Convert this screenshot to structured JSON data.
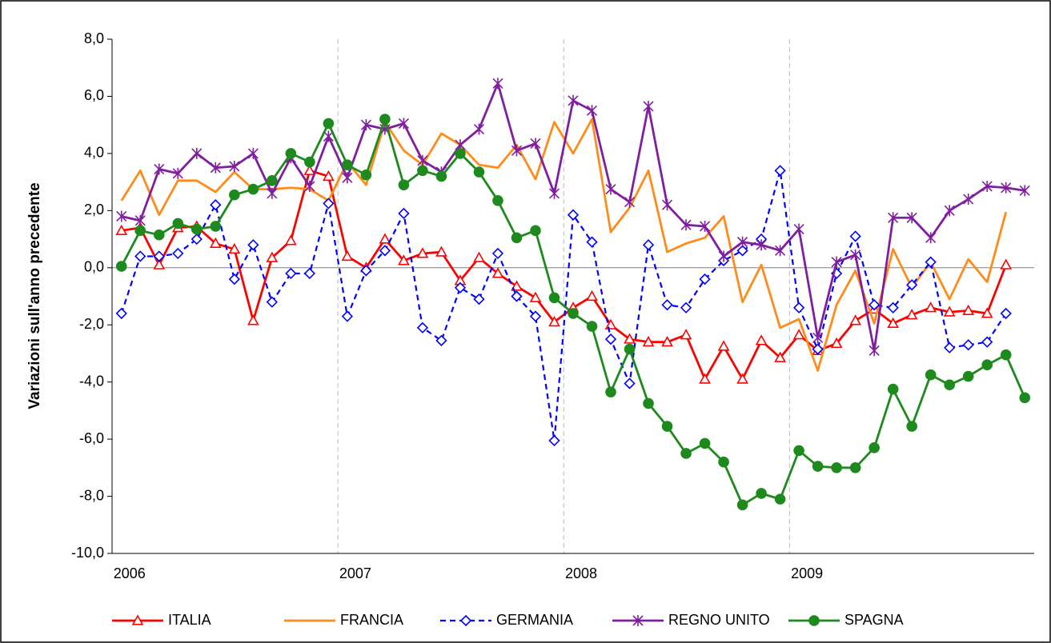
{
  "chart_data": {
    "type": "line",
    "y_label": "Variazioni sull'anno precedente",
    "categories": [
      "2006",
      null,
      null,
      null,
      null,
      null,
      null,
      null,
      null,
      null,
      null,
      null,
      "2007",
      null,
      null,
      null,
      null,
      null,
      null,
      null,
      null,
      null,
      null,
      null,
      "2008",
      null,
      null,
      null,
      null,
      null,
      null,
      null,
      null,
      null,
      null,
      null,
      "2009",
      null,
      null,
      null,
      null,
      null,
      null,
      null,
      null,
      null,
      null,
      null,
      null
    ],
    "ylim": [
      -10,
      8
    ],
    "yticks": [
      {
        "value": -10,
        "label": "-10,0"
      },
      {
        "value": -8,
        "label": "-8,0"
      },
      {
        "value": -6,
        "label": "-6,0"
      },
      {
        "value": -4,
        "label": "-4,0"
      },
      {
        "value": -2,
        "label": "-2,0"
      },
      {
        "value": 0,
        "label": "0,0"
      },
      {
        "value": 2,
        "label": "2,0"
      },
      {
        "value": 4,
        "label": "4,0"
      },
      {
        "value": 6,
        "label": "6,0"
      },
      {
        "value": 8,
        "label": "8,0"
      }
    ],
    "xgrid": true,
    "legend": "bottom",
    "series": [
      {
        "name": "ITALIA",
        "color": "#ff0000",
        "marker": "triangle",
        "dashed": false,
        "values": [
          1.3,
          1.4,
          0.1,
          1.4,
          1.45,
          0.85,
          0.65,
          -1.85,
          0.35,
          0.95,
          3.4,
          3.2,
          0.4,
          0.0,
          1.0,
          0.25,
          0.5,
          0.55,
          -0.45,
          0.35,
          -0.2,
          -0.65,
          -1.05,
          -1.9,
          -1.4,
          -1.0,
          -2.0,
          -2.5,
          -2.6,
          -2.6,
          -2.35,
          -3.9,
          -2.75,
          -3.9,
          -2.55,
          -3.15,
          -2.35,
          -2.9,
          -2.65,
          -1.85,
          -1.45,
          -1.95,
          -1.65,
          -1.4,
          -1.55,
          -1.5,
          -1.6,
          0.1,
          null
        ]
      },
      {
        "name": "FRANCIA",
        "color": "#ff8c1a",
        "marker": "none",
        "dashed": false,
        "values": [
          2.35,
          3.4,
          1.85,
          3.05,
          3.05,
          2.65,
          3.35,
          2.75,
          2.75,
          2.8,
          2.75,
          2.35,
          3.7,
          2.9,
          5.1,
          4.1,
          3.6,
          4.7,
          4.3,
          3.6,
          3.5,
          4.3,
          3.1,
          5.1,
          4.0,
          5.2,
          1.25,
          2.1,
          3.4,
          0.55,
          0.85,
          1.05,
          1.8,
          -1.2,
          0.1,
          -2.1,
          -1.8,
          -3.6,
          -1.3,
          -0.1,
          -1.95,
          0.65,
          -0.7,
          0.2,
          -1.1,
          0.3,
          -0.5,
          1.95,
          null
        ]
      },
      {
        "name": "GERMANIA",
        "color": "#0000ff",
        "marker": "diamond",
        "dashed": true,
        "values": [
          -1.6,
          0.4,
          0.4,
          0.5,
          1.0,
          2.2,
          -0.4,
          0.8,
          -1.2,
          -0.2,
          -0.2,
          2.25,
          -1.7,
          -0.1,
          0.6,
          1.9,
          -2.1,
          -2.55,
          -0.7,
          -1.1,
          0.5,
          -1.0,
          -1.7,
          -6.05,
          1.85,
          0.9,
          -2.5,
          -4.05,
          0.8,
          -1.3,
          -1.4,
          -0.4,
          0.25,
          0.6,
          1.0,
          3.4,
          -1.4,
          -2.85,
          -0.2,
          1.1,
          -1.3,
          -1.4,
          -0.6,
          0.2,
          -2.8,
          -2.7,
          -2.6,
          -1.6,
          null
        ]
      },
      {
        "name": "REGNO UNITO",
        "color": "#7f1f9f",
        "marker": "star",
        "dashed": false,
        "values": [
          1.8,
          1.65,
          3.45,
          3.3,
          4.0,
          3.5,
          3.55,
          4.0,
          2.6,
          3.85,
          2.85,
          4.6,
          3.15,
          5.0,
          4.85,
          5.05,
          3.75,
          3.35,
          4.3,
          4.85,
          6.45,
          4.1,
          4.35,
          2.6,
          5.85,
          5.5,
          2.75,
          2.3,
          5.65,
          2.2,
          1.5,
          1.45,
          0.4,
          0.9,
          0.8,
          0.6,
          1.35,
          -2.45,
          0.2,
          0.45,
          -2.9,
          1.75,
          1.75,
          1.05,
          2.0,
          2.4,
          2.85,
          2.8,
          2.7
        ]
      },
      {
        "name": "SPAGNA",
        "color": "#1e8a1e",
        "marker": "circle",
        "dashed": false,
        "values": [
          0.05,
          1.3,
          1.15,
          1.55,
          1.35,
          1.45,
          2.55,
          2.75,
          3.05,
          4.0,
          3.7,
          5.05,
          3.6,
          3.25,
          5.2,
          2.9,
          3.4,
          3.2,
          4.0,
          3.35,
          2.35,
          1.05,
          1.3,
          -1.05,
          -1.6,
          -2.05,
          -4.35,
          -2.85,
          -4.75,
          -5.55,
          -6.5,
          -6.15,
          -6.8,
          -8.3,
          -7.9,
          -8.1,
          -6.4,
          -6.95,
          -7.0,
          -7.0,
          -6.3,
          -4.25,
          -5.55,
          -3.75,
          -4.1,
          -3.8,
          -3.4,
          -3.05,
          -4.55
        ]
      }
    ]
  }
}
